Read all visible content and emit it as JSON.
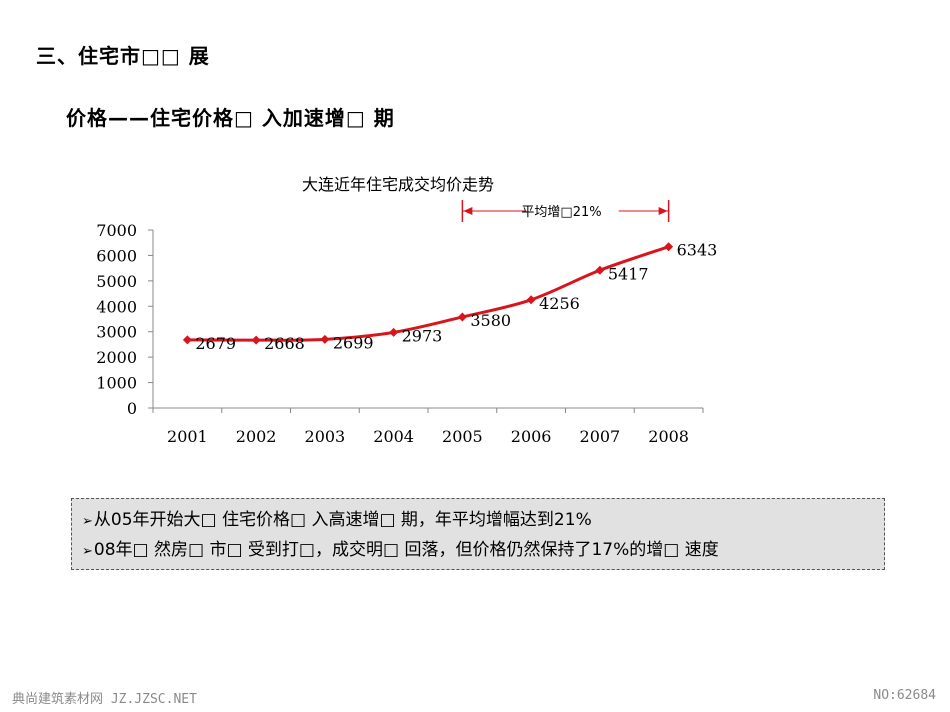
{
  "header": {
    "section_title": "三、住宅市□□ 展",
    "subtitle": "价格——住宅价格□ 入加速增□ 期"
  },
  "chart_data": {
    "type": "line",
    "title": "大连近年住宅成交均价走势",
    "categories": [
      "2001",
      "2002",
      "2003",
      "2004",
      "2005",
      "2006",
      "2007",
      "2008"
    ],
    "values": [
      2679,
      2668,
      2699,
      2973,
      3580,
      4256,
      5417,
      6343
    ],
    "y_ticks": [
      "0",
      "1000",
      "2000",
      "3000",
      "4000",
      "5000",
      "6000",
      "7000"
    ],
    "ylim": [
      0,
      7000
    ],
    "xlabel": "",
    "ylabel": "",
    "grid": false,
    "line_color": "#d8141c",
    "annotation": {
      "text": "平均增□21%",
      "from_category": "2005",
      "to_category": "2008",
      "color": "#d8141c"
    }
  },
  "summary": {
    "lines": [
      "从05年开始大□ 住宅价格□ 入高速增□ 期，年平均增幅达到21%",
      "08年□ 然房□ 市□ 受到打□，成交明□ 回落，但价格仍然保持了17%的增□ 速度"
    ],
    "bullet": "➢"
  },
  "footer": {
    "left": "典尚建筑素材网 JZ.JZSC.NET",
    "right": "NO:62684"
  }
}
